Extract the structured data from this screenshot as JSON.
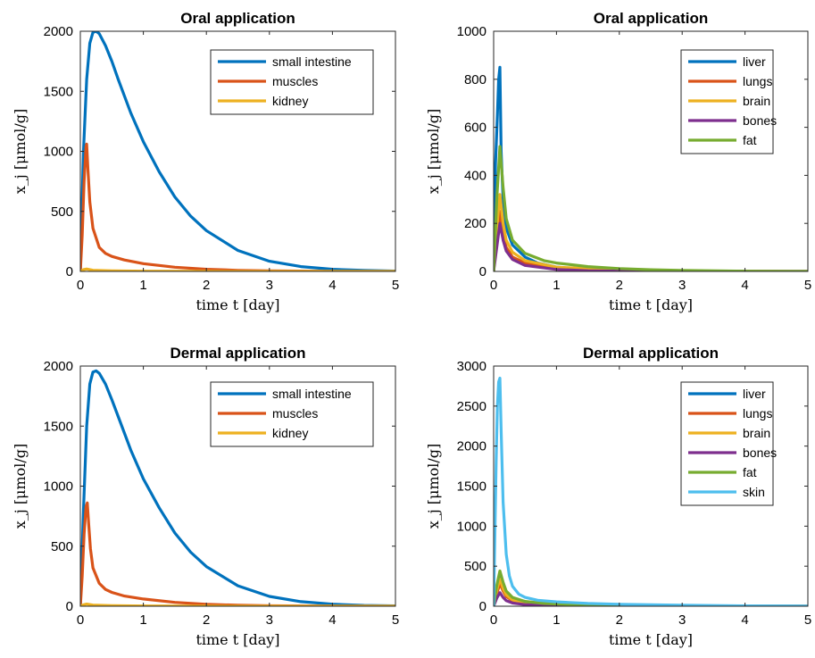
{
  "chart_data": [
    {
      "type": "line",
      "title": "Oral application",
      "xlabel": "time t [day]",
      "ylabel": "x_j [μmol/g]",
      "xlim": [
        0,
        5
      ],
      "ylim": [
        0,
        2000
      ],
      "xticks": [
        0,
        1,
        2,
        3,
        4,
        5
      ],
      "yticks": [
        0,
        500,
        1000,
        1500,
        2000
      ],
      "legend_position": "top-right",
      "series": [
        {
          "name": "small intestine",
          "color": "#0072BD",
          "x": [
            0,
            0.02,
            0.05,
            0.1,
            0.15,
            0.2,
            0.25,
            0.3,
            0.4,
            0.5,
            0.6,
            0.8,
            1,
            1.25,
            1.5,
            1.75,
            2,
            2.5,
            3,
            3.5,
            4,
            4.5,
            5
          ],
          "y": [
            0,
            400,
            1000,
            1600,
            1900,
            1990,
            2000,
            1980,
            1880,
            1750,
            1600,
            1320,
            1080,
            830,
            620,
            460,
            340,
            175,
            85,
            40,
            18,
            8,
            3
          ]
        },
        {
          "name": "muscles",
          "color": "#D95319",
          "x": [
            0,
            0.03,
            0.06,
            0.09,
            0.1,
            0.12,
            0.15,
            0.2,
            0.3,
            0.4,
            0.5,
            0.7,
            1,
            1.5,
            2,
            2.5,
            3,
            4,
            5
          ],
          "y": [
            0,
            300,
            750,
            1040,
            1060,
            850,
            580,
            360,
            200,
            150,
            125,
            95,
            65,
            35,
            18,
            9,
            5,
            1,
            0
          ]
        },
        {
          "name": "kidney",
          "color": "#EDB120",
          "x": [
            0,
            0.05,
            0.1,
            0.2,
            0.5,
            1,
            2,
            3,
            5
          ],
          "y": [
            0,
            15,
            20,
            10,
            5,
            2,
            1,
            0,
            0
          ]
        }
      ]
    },
    {
      "type": "line",
      "title": "Oral application",
      "xlabel": "time t [day]",
      "ylabel": "x_j [μmol/g]",
      "xlim": [
        0,
        5
      ],
      "ylim": [
        0,
        1000
      ],
      "xticks": [
        0,
        1,
        2,
        3,
        4,
        5
      ],
      "yticks": [
        0,
        200,
        400,
        600,
        800,
        1000
      ],
      "legend_position": "top-right",
      "series": [
        {
          "name": "liver",
          "color": "#0072BD",
          "x": [
            0,
            0.03,
            0.06,
            0.08,
            0.1,
            0.12,
            0.15,
            0.2,
            0.3,
            0.5,
            0.7,
            1,
            1.5,
            2,
            3,
            4,
            5
          ],
          "y": [
            0,
            450,
            650,
            800,
            850,
            500,
            300,
            180,
            110,
            60,
            35,
            18,
            7,
            3,
            1,
            0,
            0
          ]
        },
        {
          "name": "lungs",
          "color": "#D95319",
          "x": [
            0,
            0.05,
            0.1,
            0.15,
            0.2,
            0.3,
            0.5,
            1,
            2,
            3,
            5
          ],
          "y": [
            0,
            150,
            250,
            150,
            100,
            60,
            35,
            15,
            4,
            1,
            0
          ]
        },
        {
          "name": "brain",
          "color": "#EDB120",
          "x": [
            0,
            0.05,
            0.1,
            0.15,
            0.2,
            0.3,
            0.5,
            1,
            2,
            3,
            5
          ],
          "y": [
            0,
            180,
            320,
            200,
            130,
            80,
            45,
            18,
            5,
            1,
            0
          ]
        },
        {
          "name": "bones",
          "color": "#7E2F8E",
          "x": [
            0,
            0.05,
            0.1,
            0.15,
            0.2,
            0.3,
            0.5,
            1,
            1.5,
            2,
            3,
            5
          ],
          "y": [
            0,
            100,
            200,
            130,
            85,
            50,
            25,
            8,
            3,
            1,
            0,
            0
          ]
        },
        {
          "name": "fat",
          "color": "#77AC30",
          "x": [
            0,
            0.05,
            0.1,
            0.15,
            0.2,
            0.3,
            0.5,
            0.8,
            1,
            1.5,
            2,
            2.5,
            3,
            4,
            5
          ],
          "y": [
            0,
            300,
            520,
            350,
            220,
            130,
            75,
            45,
            35,
            20,
            12,
            7,
            4,
            1,
            0
          ]
        }
      ]
    },
    {
      "type": "line",
      "title": "Dermal application",
      "xlabel": "time t [day]",
      "ylabel": "x_j [μmol/g]",
      "xlim": [
        0,
        5
      ],
      "ylim": [
        0,
        2000
      ],
      "xticks": [
        0,
        1,
        2,
        3,
        4,
        5
      ],
      "yticks": [
        0,
        500,
        1000,
        1500,
        2000
      ],
      "legend_position": "top-right",
      "series": [
        {
          "name": "small intestine",
          "color": "#0072BD",
          "x": [
            0,
            0.02,
            0.05,
            0.1,
            0.15,
            0.2,
            0.25,
            0.3,
            0.4,
            0.5,
            0.6,
            0.8,
            1,
            1.25,
            1.5,
            1.75,
            2,
            2.5,
            3,
            3.5,
            4,
            4.5,
            5
          ],
          "y": [
            0,
            300,
            800,
            1500,
            1850,
            1950,
            1960,
            1940,
            1850,
            1720,
            1580,
            1300,
            1060,
            820,
            610,
            450,
            330,
            170,
            82,
            38,
            17,
            7,
            3
          ]
        },
        {
          "name": "muscles",
          "color": "#D95319",
          "x": [
            0,
            0.03,
            0.06,
            0.09,
            0.11,
            0.13,
            0.16,
            0.2,
            0.3,
            0.4,
            0.5,
            0.7,
            1,
            1.5,
            2,
            2.5,
            3,
            4,
            5
          ],
          "y": [
            0,
            250,
            600,
            830,
            860,
            700,
            480,
            320,
            190,
            140,
            115,
            85,
            60,
            32,
            16,
            8,
            4,
            1,
            0
          ]
        },
        {
          "name": "kidney",
          "color": "#EDB120",
          "x": [
            0,
            0.05,
            0.1,
            0.2,
            0.5,
            1,
            2,
            3,
            5
          ],
          "y": [
            0,
            12,
            18,
            10,
            5,
            2,
            1,
            0,
            0
          ]
        }
      ]
    },
    {
      "type": "line",
      "title": "Dermal application",
      "xlabel": "time t [day]",
      "ylabel": "x_j [μmol/g]",
      "xlim": [
        0,
        5
      ],
      "ylim": [
        0,
        3000
      ],
      "xticks": [
        0,
        1,
        2,
        3,
        4,
        5
      ],
      "yticks": [
        0,
        500,
        1000,
        1500,
        2000,
        2500,
        3000
      ],
      "legend_position": "top-right",
      "series": [
        {
          "name": "liver",
          "color": "#0072BD",
          "x": [
            0,
            0.05,
            0.1,
            0.15,
            0.2,
            0.3,
            0.5,
            1,
            2,
            3,
            5
          ],
          "y": [
            0,
            220,
            380,
            250,
            160,
            90,
            45,
            15,
            3,
            1,
            0
          ]
        },
        {
          "name": "lungs",
          "color": "#D95319",
          "x": [
            0,
            0.05,
            0.1,
            0.15,
            0.2,
            0.3,
            0.5,
            1,
            2,
            3,
            5
          ],
          "y": [
            0,
            160,
            280,
            190,
            120,
            70,
            35,
            12,
            3,
            1,
            0
          ]
        },
        {
          "name": "brain",
          "color": "#EDB120",
          "x": [
            0,
            0.05,
            0.1,
            0.15,
            0.2,
            0.3,
            0.5,
            1,
            2,
            3,
            5
          ],
          "y": [
            0,
            200,
            340,
            220,
            140,
            80,
            40,
            14,
            3,
            1,
            0
          ]
        },
        {
          "name": "bones",
          "color": "#7E2F8E",
          "x": [
            0,
            0.05,
            0.1,
            0.15,
            0.2,
            0.3,
            0.5,
            1,
            1.5,
            2,
            3,
            5
          ],
          "y": [
            0,
            100,
            170,
            110,
            70,
            40,
            20,
            6,
            2,
            1,
            0,
            0
          ]
        },
        {
          "name": "fat",
          "color": "#77AC30",
          "x": [
            0,
            0.05,
            0.1,
            0.15,
            0.2,
            0.3,
            0.5,
            0.8,
            1,
            1.5,
            2,
            3,
            4,
            5
          ],
          "y": [
            0,
            260,
            440,
            300,
            190,
            110,
            60,
            35,
            28,
            15,
            9,
            3,
            1,
            0
          ]
        },
        {
          "name": "skin",
          "color": "#4DBEEE",
          "x": [
            0,
            0.02,
            0.04,
            0.06,
            0.08,
            0.1,
            0.12,
            0.15,
            0.2,
            0.25,
            0.3,
            0.4,
            0.5,
            0.7,
            1,
            1.5,
            2,
            2.5,
            3,
            4,
            5
          ],
          "y": [
            0,
            900,
            1800,
            2500,
            2800,
            2850,
            2200,
            1300,
            650,
            380,
            250,
            150,
            110,
            75,
            55,
            35,
            25,
            18,
            12,
            5,
            2
          ]
        }
      ]
    }
  ]
}
